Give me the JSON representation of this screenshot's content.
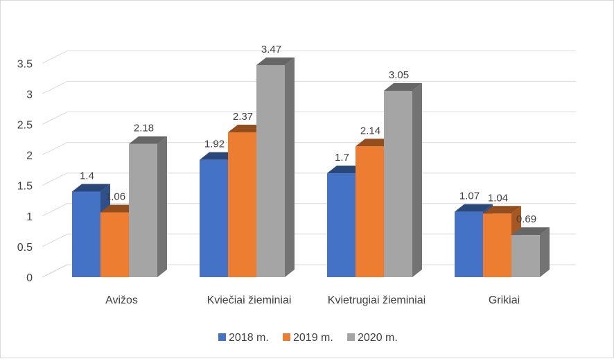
{
  "chart_data": {
    "type": "bar",
    "title": "",
    "xlabel": "",
    "ylabel": "",
    "ylim": [
      0,
      3.5
    ],
    "yticks": [
      "0",
      "0.5",
      "1",
      "1.5",
      "2",
      "2.5",
      "3",
      "3.5"
    ],
    "grid": true,
    "legend_position": "bottom",
    "categories": [
      "Avižos",
      "Kviečiai žieminiai",
      "Kvietrugiai žieminiai",
      "Grikiai"
    ],
    "series": [
      {
        "name": "2018 m.",
        "color": "#4472c4",
        "values": [
          1.4,
          1.92,
          1.7,
          1.07
        ],
        "labels": [
          "1.4",
          "1.92",
          "1.7",
          "1.07"
        ]
      },
      {
        "name": "2019 m.",
        "color": "#ed7d31",
        "values": [
          1.06,
          2.37,
          2.14,
          1.04
        ],
        "labels": [
          "1.06",
          "2.37",
          "2.14",
          "1.04"
        ]
      },
      {
        "name": "2020 m.",
        "color": "#a5a5a5",
        "values": [
          2.18,
          3.47,
          3.05,
          0.69
        ],
        "labels": [
          "2.18",
          "3.47",
          "3.05",
          "0.69"
        ]
      }
    ]
  }
}
